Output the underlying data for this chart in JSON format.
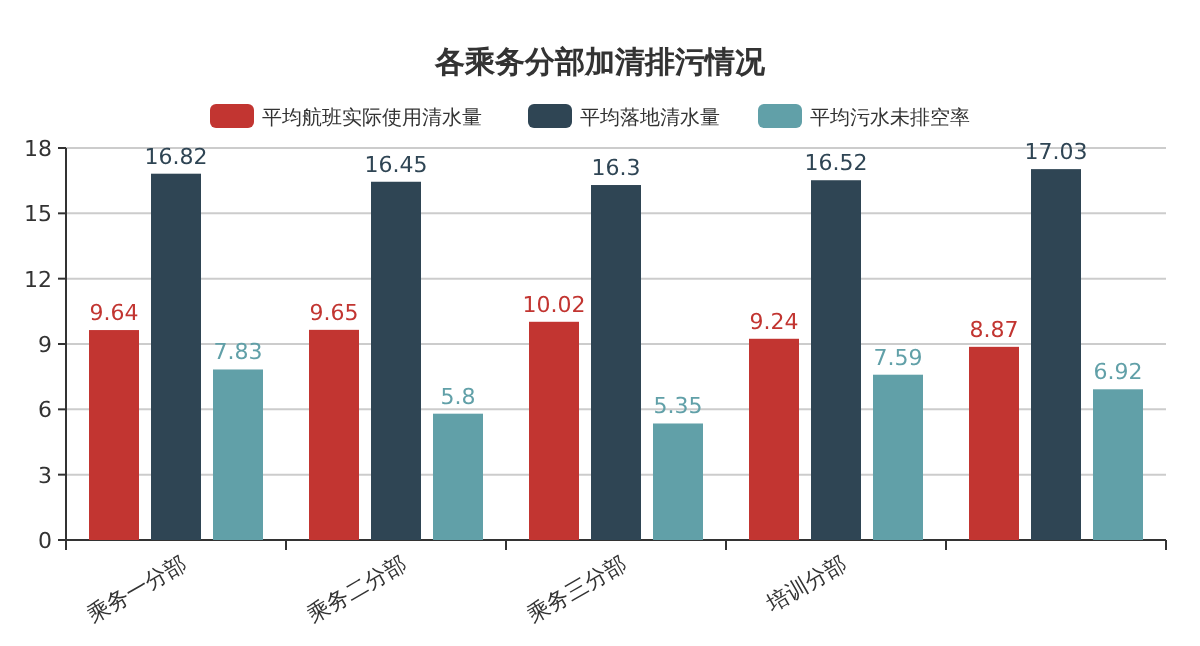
{
  "chart_data": {
    "type": "bar",
    "title": "各乘务分部加清排污情况",
    "categories": [
      "乘务一分部",
      "乘务二分部",
      "乘务三分部",
      "培训分部",
      null
    ],
    "series": [
      {
        "name": "平均航班实际使用清水量",
        "color": "#c23531",
        "values": [
          9.64,
          9.65,
          10.02,
          9.24,
          8.87
        ]
      },
      {
        "name": "平均落地清水量",
        "color": "#2f4554",
        "values": [
          16.82,
          16.45,
          16.3,
          16.52,
          17.03
        ]
      },
      {
        "name": "平均污水未排空率",
        "color": "#61a0a8",
        "values": [
          7.83,
          5.8,
          5.35,
          7.59,
          6.92
        ]
      }
    ],
    "ylim": [
      0,
      18
    ],
    "yticks": [
      0,
      3,
      6,
      9,
      12,
      15,
      18
    ],
    "grid": "y",
    "legend": "top",
    "data_labels": true
  }
}
